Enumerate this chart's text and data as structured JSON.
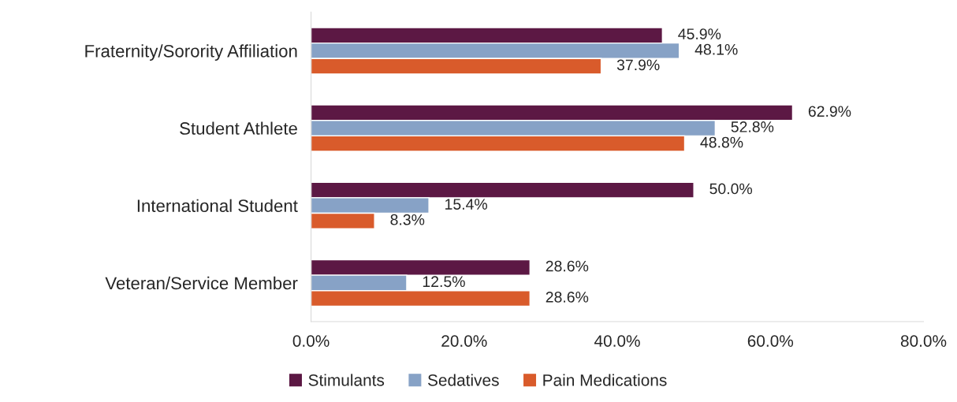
{
  "chart_data": {
    "type": "bar",
    "orientation": "horizontal",
    "categories": [
      "Fraternity/Sorority Affiliation",
      "Student Athlete",
      "International Student",
      "Veteran/Service Member"
    ],
    "series": [
      {
        "name": "Stimulants",
        "color": "#5c1844",
        "values": [
          45.9,
          62.9,
          50.0,
          28.6
        ],
        "value_labels": [
          "45.9%",
          "62.9%",
          "50.0%",
          "28.6%"
        ]
      },
      {
        "name": "Sedatives",
        "color": "#87a2c6",
        "values": [
          48.1,
          52.8,
          15.4,
          12.5
        ],
        "value_labels": [
          "48.1%",
          "52.8%",
          "15.4%",
          "12.5%"
        ]
      },
      {
        "name": "Pain Medications",
        "color": "#d95b2b",
        "values": [
          37.9,
          48.8,
          8.3,
          28.6
        ],
        "value_labels": [
          "37.9%",
          "48.8%",
          "8.3%",
          "28.6%"
        ]
      }
    ],
    "xlim": [
      0,
      80
    ],
    "xticks": [
      {
        "value": 0,
        "label": "0.0%"
      },
      {
        "value": 20,
        "label": "20.0%"
      },
      {
        "value": 40,
        "label": "40.0%"
      },
      {
        "value": 60,
        "label": "60.0%"
      },
      {
        "value": 80,
        "label": "80.0%"
      }
    ],
    "grid": false,
    "legend": "bottom"
  }
}
